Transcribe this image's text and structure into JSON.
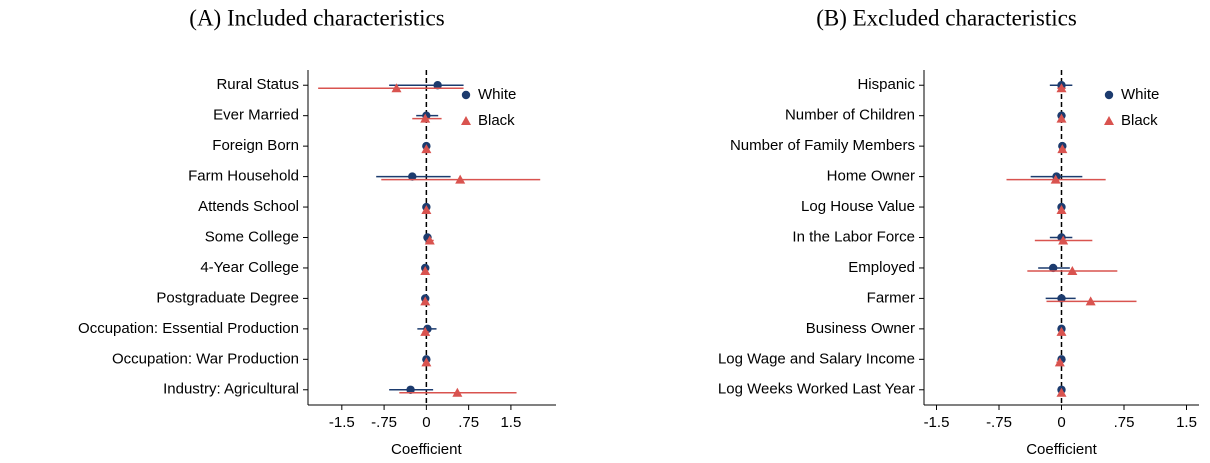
{
  "chart_data": [
    {
      "type": "coefficient",
      "title": "(A) Included characteristics",
      "xlabel": "Coefficient",
      "categories": [
        "Rural Status",
        "Ever Married",
        "Foreign Born",
        "Farm Household",
        "Attends School",
        "Some College",
        "4-Year College",
        "Postgraduate Degree",
        "Occupation: Essential Production",
        "Occupation: War Production",
        "Industry: Agricultural"
      ],
      "xlim": [
        -2.1,
        2.3
      ],
      "xticks": [
        -1.5,
        {
          "value": -0.75,
          "label": "-.75"
        },
        0,
        {
          "value": 0.75,
          "label": ".75"
        },
        1.5
      ],
      "reference_line": 0,
      "legend": "upper right",
      "series": [
        {
          "name": "White",
          "color": "#1c3b6e",
          "marker": "circle",
          "values": [
            0.2,
            0,
            0,
            -0.25,
            0,
            0.02,
            -0.02,
            -0.02,
            0.02,
            0,
            -0.28
          ],
          "lower": [
            -0.66,
            -0.18,
            -0.05,
            -0.89,
            -0.04,
            -0.05,
            -0.06,
            -0.06,
            -0.16,
            -0.04,
            -0.66
          ],
          "upper": [
            0.66,
            0.21,
            0.05,
            0.43,
            0.04,
            0.09,
            0.03,
            0.02,
            0.18,
            0.04,
            0.12
          ]
        },
        {
          "name": "Black",
          "color": "#d9534f",
          "marker": "triangle",
          "values": [
            -0.53,
            -0.02,
            0,
            0.6,
            0,
            0.06,
            -0.02,
            -0.02,
            -0.02,
            0,
            0.55
          ],
          "lower": [
            -1.92,
            -0.25,
            -0.05,
            -0.8,
            -0.04,
            0,
            -0.06,
            -0.07,
            -0.07,
            -0.04,
            -0.48
          ],
          "upper": [
            0.66,
            0.27,
            0.05,
            2.02,
            0.04,
            0.13,
            0.03,
            0.03,
            0.04,
            0.04,
            1.6
          ]
        }
      ]
    },
    {
      "type": "coefficient",
      "title": "(B) Excluded characteristics",
      "xlabel": "Coefficient",
      "categories": [
        "Hispanic",
        "Number of Children",
        "Number of Family Members",
        "Home Owner",
        "Log House Value",
        "In the Labor Force",
        "Employed",
        "Farmer",
        "Business Owner",
        "Log Wage and Salary Income",
        "Log Weeks Worked Last Year"
      ],
      "xlim": [
        -1.65,
        1.65
      ],
      "xticks": [
        -1.5,
        {
          "value": -0.75,
          "label": "-.75"
        },
        0,
        {
          "value": 0.75,
          "label": ".75"
        },
        1.5
      ],
      "reference_line": 0,
      "legend": "upper right",
      "series": [
        {
          "name": "White",
          "color": "#1c3b6e",
          "marker": "circle",
          "values": [
            0,
            0,
            0.01,
            -0.06,
            0,
            0,
            -0.1,
            0,
            0,
            0,
            0
          ],
          "lower": [
            -0.14,
            -0.03,
            -0.03,
            -0.37,
            -0.03,
            -0.14,
            -0.28,
            -0.19,
            -0.03,
            -0.03,
            -0.03
          ],
          "upper": [
            0.13,
            0.03,
            0.05,
            0.25,
            0.03,
            0.13,
            0.1,
            0.17,
            0.03,
            0.03,
            0.03
          ]
        },
        {
          "name": "Black",
          "color": "#d9534f",
          "marker": "triangle",
          "values": [
            0,
            0,
            0.01,
            -0.07,
            0,
            0.02,
            0.13,
            0.35,
            0,
            -0.02,
            0
          ],
          "lower": [
            -0.05,
            -0.03,
            -0.03,
            -0.66,
            -0.03,
            -0.32,
            -0.41,
            -0.18,
            -0.03,
            -0.06,
            -0.03
          ],
          "upper": [
            0.05,
            0.03,
            0.05,
            0.53,
            0.03,
            0.37,
            0.67,
            0.9,
            0.03,
            0.02,
            0.03
          ]
        }
      ]
    }
  ]
}
